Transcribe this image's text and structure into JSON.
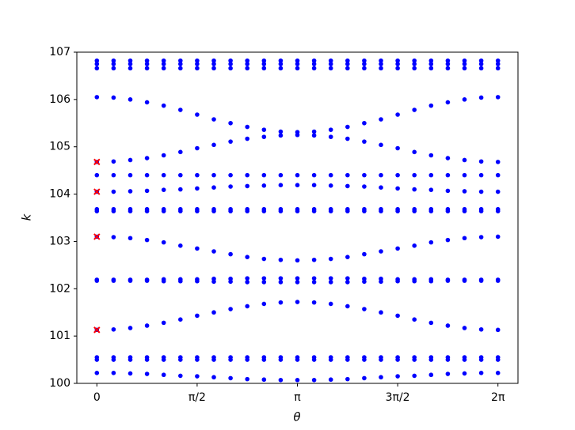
{
  "chart_data": {
    "type": "scatter",
    "xlabel": "θ",
    "ylabel": "k",
    "xlim": [
      -0.314,
      6.597
    ],
    "ylim": [
      100,
      107
    ],
    "xticks": [
      0,
      {
        "value": 1.5708,
        "label": "π/2"
      },
      {
        "value": 3.1416,
        "label": "π"
      },
      {
        "value": 4.7124,
        "label": "3π/2"
      },
      {
        "value": 6.2832,
        "label": "2π"
      }
    ],
    "yticks": [
      100,
      101,
      102,
      103,
      104,
      105,
      106,
      107
    ],
    "x": [
      0,
      0.2618,
      0.5236,
      0.7854,
      1.0472,
      1.309,
      1.5708,
      1.8326,
      2.0944,
      2.3562,
      2.618,
      2.8798,
      3.1416,
      3.4034,
      3.6652,
      3.927,
      4.1888,
      4.4506,
      4.7124,
      4.9742,
      5.236,
      5.4978,
      5.7596,
      6.0214,
      6.2832
    ],
    "series": [
      {
        "color": "#0000ff",
        "marker": "o",
        "values": [
          106.82,
          106.82,
          106.82,
          106.82,
          106.82,
          106.82,
          106.82,
          106.82,
          106.82,
          106.82,
          106.82,
          106.82,
          106.82,
          106.82,
          106.82,
          106.82,
          106.82,
          106.82,
          106.82,
          106.82,
          106.82,
          106.82,
          106.82,
          106.82,
          106.82
        ]
      },
      {
        "color": "#0000ff",
        "marker": "o",
        "values": [
          106.75,
          106.75,
          106.75,
          106.75,
          106.75,
          106.75,
          106.75,
          106.75,
          106.75,
          106.75,
          106.75,
          106.75,
          106.75,
          106.75,
          106.75,
          106.75,
          106.75,
          106.75,
          106.75,
          106.75,
          106.75,
          106.75,
          106.75,
          106.75,
          106.75
        ]
      },
      {
        "color": "#0000ff",
        "marker": "o",
        "values": [
          106.66,
          106.66,
          106.66,
          106.66,
          106.66,
          106.66,
          106.66,
          106.66,
          106.66,
          106.66,
          106.66,
          106.66,
          106.66,
          106.66,
          106.66,
          106.66,
          106.66,
          106.66,
          106.66,
          106.66,
          106.66,
          106.66,
          106.66,
          106.66,
          106.66
        ]
      },
      {
        "color": "#0000ff",
        "marker": "o",
        "values": [
          106.05,
          106.04,
          106.0,
          105.94,
          105.87,
          105.78,
          105.68,
          105.58,
          105.5,
          105.42,
          105.36,
          105.32,
          105.31,
          105.32,
          105.36,
          105.42,
          105.5,
          105.58,
          105.68,
          105.78,
          105.87,
          105.94,
          106.0,
          106.04,
          106.05
        ]
      },
      {
        "color": "#0000ff",
        "marker": "o",
        "values": [
          104.68,
          104.69,
          104.72,
          104.76,
          104.82,
          104.89,
          104.97,
          105.04,
          105.11,
          105.17,
          105.21,
          105.24,
          105.25,
          105.24,
          105.21,
          105.17,
          105.11,
          105.04,
          104.97,
          104.89,
          104.82,
          104.76,
          104.72,
          104.69,
          104.68
        ]
      },
      {
        "color": "#0000ff",
        "marker": "o",
        "values": [
          104.4,
          104.4,
          104.4,
          104.4,
          104.4,
          104.4,
          104.4,
          104.4,
          104.4,
          104.4,
          104.4,
          104.4,
          104.4,
          104.4,
          104.4,
          104.4,
          104.4,
          104.4,
          104.4,
          104.4,
          104.4,
          104.4,
          104.4,
          104.4,
          104.4
        ]
      },
      {
        "color": "#0000ff",
        "marker": "o",
        "values": [
          104.05,
          104.05,
          104.06,
          104.07,
          104.09,
          104.1,
          104.12,
          104.14,
          104.16,
          104.17,
          104.18,
          104.19,
          104.19,
          104.19,
          104.18,
          104.17,
          104.16,
          104.14,
          104.12,
          104.1,
          104.09,
          104.07,
          104.06,
          104.05,
          104.05
        ]
      },
      {
        "color": "#0000ff",
        "marker": "o",
        "values": [
          103.68,
          103.68,
          103.68,
          103.68,
          103.68,
          103.68,
          103.68,
          103.68,
          103.68,
          103.68,
          103.68,
          103.68,
          103.68,
          103.68,
          103.68,
          103.68,
          103.68,
          103.68,
          103.68,
          103.68,
          103.68,
          103.68,
          103.68,
          103.68,
          103.68
        ]
      },
      {
        "color": "#0000ff",
        "marker": "o",
        "values": [
          103.64,
          103.64,
          103.64,
          103.64,
          103.64,
          103.64,
          103.64,
          103.64,
          103.64,
          103.64,
          103.64,
          103.64,
          103.64,
          103.64,
          103.64,
          103.64,
          103.64,
          103.64,
          103.64,
          103.64,
          103.64,
          103.64,
          103.64,
          103.64,
          103.64
        ]
      },
      {
        "color": "#0000ff",
        "marker": "o",
        "values": [
          103.1,
          103.09,
          103.07,
          103.03,
          102.98,
          102.91,
          102.85,
          102.79,
          102.73,
          102.67,
          102.63,
          102.61,
          102.6,
          102.61,
          102.63,
          102.67,
          102.73,
          102.79,
          102.85,
          102.91,
          102.98,
          103.03,
          103.07,
          103.09,
          103.1
        ]
      },
      {
        "color": "#0000ff",
        "marker": "o",
        "values": [
          102.19,
          102.19,
          102.19,
          102.19,
          102.2,
          102.2,
          102.2,
          102.21,
          102.21,
          102.22,
          102.22,
          102.22,
          102.22,
          102.22,
          102.22,
          102.22,
          102.21,
          102.21,
          102.2,
          102.2,
          102.2,
          102.19,
          102.19,
          102.19,
          102.19
        ]
      },
      {
        "color": "#0000ff",
        "marker": "o",
        "values": [
          102.17,
          102.17,
          102.17,
          102.17,
          102.16,
          102.16,
          102.16,
          102.15,
          102.15,
          102.14,
          102.14,
          102.14,
          102.14,
          102.14,
          102.14,
          102.14,
          102.15,
          102.15,
          102.16,
          102.16,
          102.16,
          102.17,
          102.17,
          102.17,
          102.17
        ]
      },
      {
        "color": "#0000ff",
        "marker": "o",
        "values": [
          101.13,
          101.14,
          101.17,
          101.22,
          101.28,
          101.35,
          101.43,
          101.5,
          101.57,
          101.63,
          101.68,
          101.71,
          101.72,
          101.71,
          101.68,
          101.63,
          101.57,
          101.5,
          101.43,
          101.35,
          101.28,
          101.22,
          101.17,
          101.14,
          101.13
        ]
      },
      {
        "color": "#0000ff",
        "marker": "o",
        "values": [
          100.55,
          100.55,
          100.55,
          100.55,
          100.55,
          100.55,
          100.55,
          100.55,
          100.55,
          100.55,
          100.55,
          100.55,
          100.55,
          100.55,
          100.55,
          100.55,
          100.55,
          100.55,
          100.55,
          100.55,
          100.55,
          100.55,
          100.55,
          100.55,
          100.55
        ]
      },
      {
        "color": "#0000ff",
        "marker": "o",
        "values": [
          100.5,
          100.5,
          100.5,
          100.5,
          100.5,
          100.5,
          100.5,
          100.5,
          100.5,
          100.5,
          100.5,
          100.5,
          100.5,
          100.5,
          100.5,
          100.5,
          100.5,
          100.5,
          100.5,
          100.5,
          100.5,
          100.5,
          100.5,
          100.5,
          100.5
        ]
      },
      {
        "color": "#0000ff",
        "marker": "o",
        "values": [
          100.22,
          100.22,
          100.21,
          100.2,
          100.18,
          100.16,
          100.15,
          100.13,
          100.11,
          100.09,
          100.08,
          100.07,
          100.07,
          100.07,
          100.08,
          100.09,
          100.11,
          100.13,
          100.15,
          100.16,
          100.18,
          100.2,
          100.21,
          100.22,
          100.22
        ]
      },
      {
        "color": "#ff0000",
        "marker": "x",
        "x": [
          0,
          0,
          0,
          0
        ],
        "values": [
          104.68,
          104.05,
          103.1,
          101.13
        ]
      }
    ]
  }
}
